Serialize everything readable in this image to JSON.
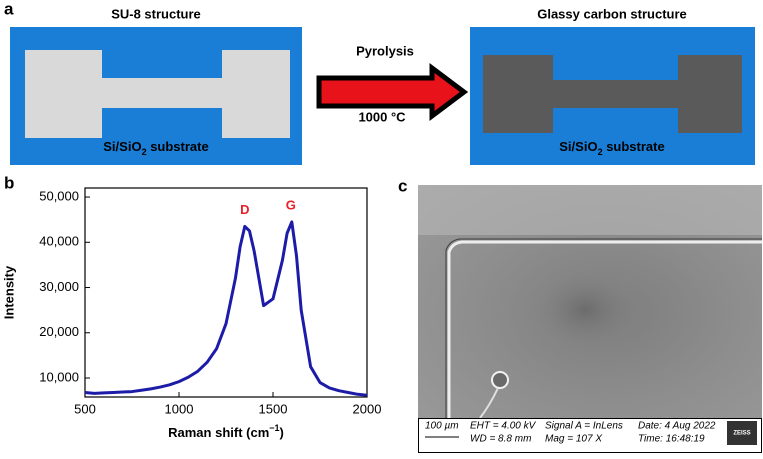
{
  "panel_a": {
    "label": "a",
    "left_title": "SU-8 structure",
    "right_title": "Glassy carbon structure",
    "substrate_parts": [
      "Si/SiO",
      "2",
      " substrate"
    ],
    "arrow_top": "Pyrolysis",
    "arrow_bottom": "1000 °C"
  },
  "chart_data": {
    "type": "line",
    "panel_label": "b",
    "xlabel_parts": [
      "Raman shift (cm",
      "−1",
      ")"
    ],
    "ylabel": "Intensity",
    "x": [
      500,
      550,
      600,
      650,
      700,
      750,
      800,
      850,
      900,
      950,
      1000,
      1050,
      1100,
      1150,
      1200,
      1250,
      1300,
      1325,
      1350,
      1375,
      1400,
      1450,
      1500,
      1550,
      1575,
      1600,
      1625,
      1650,
      1700,
      1750,
      1800,
      1850,
      1900,
      1950,
      2000
    ],
    "series": [
      {
        "color": "#1c1ca8",
        "values": [
          6800,
          6600,
          6700,
          6800,
          6900,
          7000,
          7300,
          7600,
          8000,
          8500,
          9200,
          10200,
          11500,
          13500,
          16500,
          22000,
          32000,
          39000,
          43500,
          42500,
          38000,
          26000,
          27500,
          36000,
          42000,
          44500,
          37000,
          25000,
          12500,
          9000,
          7800,
          7200,
          6800,
          6400,
          6200
        ]
      }
    ],
    "xlim": [
      500,
      2000
    ],
    "xticks": [
      500,
      1000,
      1500,
      2000
    ],
    "ylim": [
      5800,
      52000
    ],
    "yticks": [
      {
        "value": 10000,
        "label": "10,000"
      },
      {
        "value": 20000,
        "label": "20,000"
      },
      {
        "value": 30000,
        "label": "30,000"
      },
      {
        "value": 40000,
        "label": "40,000"
      },
      {
        "value": 50000,
        "label": "50,000"
      }
    ],
    "annotations": [
      {
        "text": "D",
        "x": 1350,
        "y": 43500
      },
      {
        "text": "G",
        "x": 1595,
        "y": 44500
      }
    ],
    "annotation_color": "#e8212a"
  },
  "panel_c": {
    "label": "c",
    "scale": "100 µm",
    "eht": "EHT = 4.00 kV",
    "wd": "WD = 8.8 mm",
    "signal": "Signal A = InLens",
    "mag": "Mag = 107 X",
    "date": "Date: 4 Aug 2022",
    "time": "Time: 16:48:19",
    "brand": "ZEISS"
  }
}
